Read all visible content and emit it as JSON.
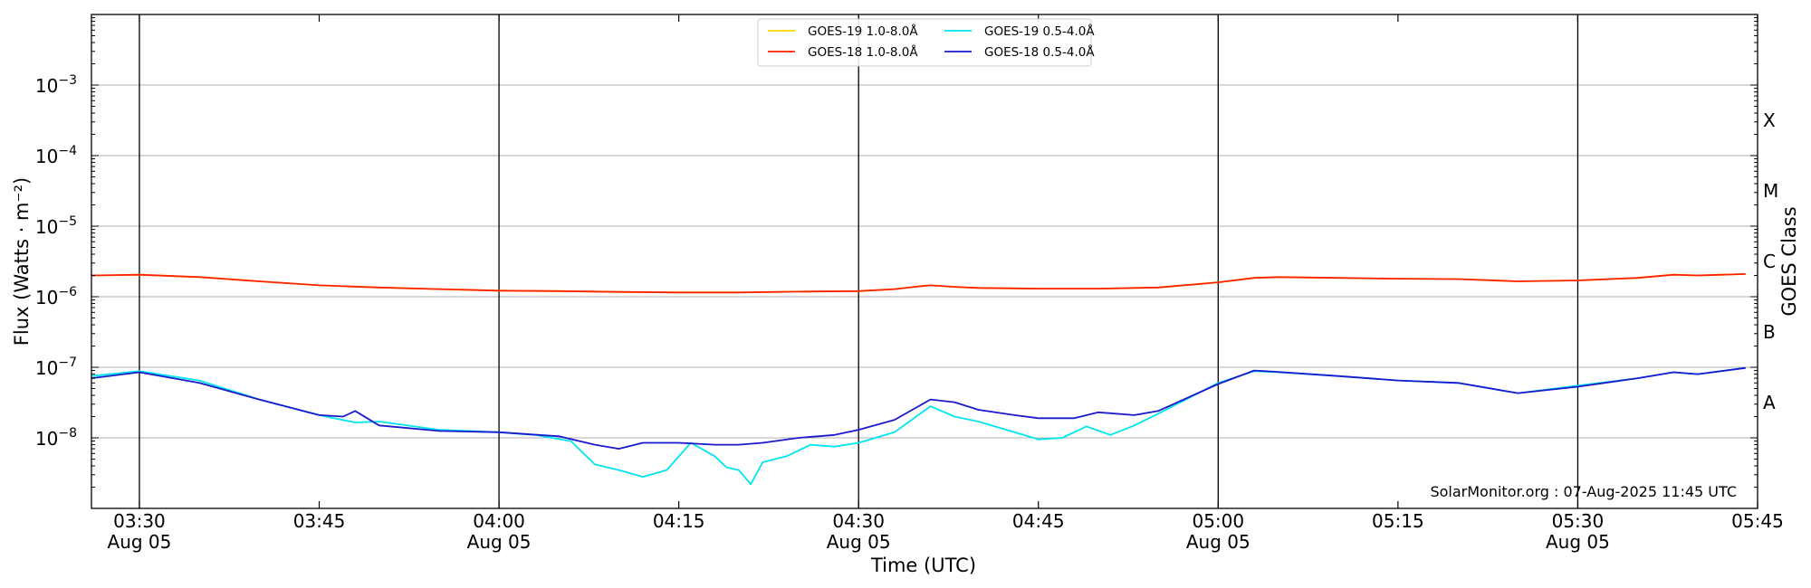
{
  "chart_data": {
    "type": "line",
    "xlabel": "Time (UTC)",
    "ylabel": "Flux (Watts · m⁻²)",
    "y2label": "GOES Class",
    "credit": "SolarMonitor.org : 07-Aug-2025 11:45 UTC",
    "y_scale": "log",
    "ylim": [
      1e-09,
      0.01
    ],
    "xlim": [
      "03:26",
      "05:45"
    ],
    "grid": "horizontal at decades; vertical lines at 03:30, 04:00, 04:30, 05:00, 05:30",
    "x_ticks": [
      {
        "time": "03:30",
        "label": "03:30",
        "sub": "Aug 05"
      },
      {
        "time": "03:45",
        "label": "03:45",
        "sub": ""
      },
      {
        "time": "04:00",
        "label": "04:00",
        "sub": "Aug 05"
      },
      {
        "time": "04:15",
        "label": "04:15",
        "sub": ""
      },
      {
        "time": "04:30",
        "label": "04:30",
        "sub": "Aug 05"
      },
      {
        "time": "04:45",
        "label": "04:45",
        "sub": ""
      },
      {
        "time": "05:00",
        "label": "05:00",
        "sub": "Aug 05"
      },
      {
        "time": "05:15",
        "label": "05:15",
        "sub": ""
      },
      {
        "time": "05:30",
        "label": "05:30",
        "sub": "Aug 05"
      },
      {
        "time": "05:45",
        "label": "05:45",
        "sub": ""
      }
    ],
    "y_ticks": [
      {
        "exp": -8,
        "label": "10",
        "sup": "−8"
      },
      {
        "exp": -7,
        "label": "10",
        "sup": "−7"
      },
      {
        "exp": -6,
        "label": "10",
        "sup": "−6"
      },
      {
        "exp": -5,
        "label": "10",
        "sup": "−5"
      },
      {
        "exp": -4,
        "label": "10",
        "sup": "−4"
      },
      {
        "exp": -3,
        "label": "10",
        "sup": "−3"
      }
    ],
    "goes_classes": [
      {
        "label": "A",
        "exp": -7.5
      },
      {
        "label": "B",
        "exp": -6.5
      },
      {
        "label": "C",
        "exp": -5.5
      },
      {
        "label": "M",
        "exp": -4.5
      },
      {
        "label": "X",
        "exp": -3.5
      }
    ],
    "legend_position": "top-center",
    "series": [
      {
        "name": "GOES-19 1.0-8.0Å",
        "color": "#ffd700",
        "x": [
          "03:26",
          "03:30",
          "03:35",
          "03:40",
          "03:45",
          "03:50",
          "03:55",
          "04:00",
          "04:05",
          "04:10",
          "04:15",
          "04:20",
          "04:25",
          "04:30",
          "04:33",
          "04:35",
          "04:36",
          "04:38",
          "04:40",
          "04:45",
          "04:50",
          "04:55",
          "05:00",
          "05:03",
          "05:05",
          "05:10",
          "05:15",
          "05:20",
          "05:25",
          "05:30",
          "05:35",
          "05:38",
          "05:40",
          "05:44"
        ],
        "y": [
          2e-06,
          2.05e-06,
          1.9e-06,
          1.65e-06,
          1.45e-06,
          1.35e-06,
          1.28e-06,
          1.22e-06,
          1.2e-06,
          1.17e-06,
          1.15e-06,
          1.15e-06,
          1.18e-06,
          1.2e-06,
          1.28e-06,
          1.4e-06,
          1.45e-06,
          1.38e-06,
          1.33e-06,
          1.3e-06,
          1.3e-06,
          1.35e-06,
          1.6e-06,
          1.85e-06,
          1.9e-06,
          1.85e-06,
          1.8e-06,
          1.78e-06,
          1.65e-06,
          1.7e-06,
          1.85e-06,
          2.05e-06,
          2e-06,
          2.1e-06
        ]
      },
      {
        "name": "GOES-18 1.0-8.0Å",
        "color": "#ff2200",
        "x": [
          "03:26",
          "03:30",
          "03:35",
          "03:40",
          "03:45",
          "03:50",
          "03:55",
          "04:00",
          "04:05",
          "04:10",
          "04:15",
          "04:20",
          "04:25",
          "04:30",
          "04:33",
          "04:35",
          "04:36",
          "04:38",
          "04:40",
          "04:45",
          "04:50",
          "04:55",
          "05:00",
          "05:03",
          "05:05",
          "05:10",
          "05:15",
          "05:20",
          "05:25",
          "05:30",
          "05:35",
          "05:38",
          "05:40",
          "05:44"
        ],
        "y": [
          2e-06,
          2.05e-06,
          1.9e-06,
          1.65e-06,
          1.45e-06,
          1.35e-06,
          1.28e-06,
          1.22e-06,
          1.2e-06,
          1.17e-06,
          1.15e-06,
          1.15e-06,
          1.18e-06,
          1.2e-06,
          1.28e-06,
          1.4e-06,
          1.45e-06,
          1.38e-06,
          1.33e-06,
          1.3e-06,
          1.3e-06,
          1.35e-06,
          1.6e-06,
          1.85e-06,
          1.9e-06,
          1.85e-06,
          1.8e-06,
          1.78e-06,
          1.65e-06,
          1.7e-06,
          1.85e-06,
          2.05e-06,
          2e-06,
          2.1e-06
        ]
      },
      {
        "name": "GOES-19 0.5-4.0Å",
        "color": "#00e5ee",
        "x": [
          "03:26",
          "03:30",
          "03:35",
          "03:40",
          "03:45",
          "03:48",
          "03:50",
          "03:55",
          "04:00",
          "04:03",
          "04:06",
          "04:08",
          "04:10",
          "04:12",
          "04:14",
          "04:16",
          "04:18",
          "04:19",
          "04:20",
          "04:21",
          "04:22",
          "04:24",
          "04:26",
          "04:28",
          "04:30",
          "04:33",
          "04:36",
          "04:38",
          "04:40",
          "04:43",
          "04:45",
          "04:47",
          "04:49",
          "04:51",
          "04:53",
          "04:55",
          "05:00",
          "05:03",
          "05:05",
          "05:10",
          "05:15",
          "05:20",
          "05:25",
          "05:30",
          "05:35",
          "05:38",
          "05:40",
          "05:44"
        ],
        "y": [
          7.5e-08,
          8.8e-08,
          6.5e-08,
          3.5e-08,
          2.1e-08,
          1.65e-08,
          1.7e-08,
          1.3e-08,
          1.2e-08,
          1.1e-08,
          9e-09,
          4.2e-09,
          3.5e-09,
          2.8e-09,
          3.5e-09,
          8.5e-09,
          5.5e-09,
          3.8e-09,
          3.5e-09,
          2.2e-09,
          4.5e-09,
          5.5e-09,
          8e-09,
          7.5e-09,
          8.5e-09,
          1.2e-08,
          2.8e-08,
          2e-08,
          1.7e-08,
          1.2e-08,
          9.5e-09,
          1e-08,
          1.45e-08,
          1.1e-08,
          1.5e-08,
          2.2e-08,
          6e-08,
          8.8e-08,
          8.5e-08,
          7.5e-08,
          6.5e-08,
          6e-08,
          4.3e-08,
          5.5e-08,
          7e-08,
          8.5e-08,
          8e-08,
          9.8e-08
        ]
      },
      {
        "name": "GOES-18 0.5-4.0Å",
        "color": "#1a1acd",
        "x": [
          "03:26",
          "03:30",
          "03:35",
          "03:40",
          "03:45",
          "03:47",
          "03:48",
          "03:50",
          "03:55",
          "04:00",
          "04:05",
          "04:08",
          "04:10",
          "04:12",
          "04:15",
          "04:18",
          "04:20",
          "04:22",
          "04:25",
          "04:28",
          "04:30",
          "04:33",
          "04:36",
          "04:38",
          "04:40",
          "04:43",
          "04:45",
          "04:48",
          "04:50",
          "04:53",
          "04:55",
          "05:00",
          "05:03",
          "05:05",
          "05:10",
          "05:15",
          "05:20",
          "05:25",
          "05:30",
          "05:35",
          "05:38",
          "05:40",
          "05:44"
        ],
        "y": [
          7e-08,
          8.5e-08,
          6e-08,
          3.5e-08,
          2.1e-08,
          2e-08,
          2.4e-08,
          1.5e-08,
          1.25e-08,
          1.2e-08,
          1.05e-08,
          8e-09,
          7e-09,
          8.5e-09,
          8.5e-09,
          8e-09,
          8e-09,
          8.5e-09,
          1e-08,
          1.1e-08,
          1.3e-08,
          1.8e-08,
          3.5e-08,
          3.2e-08,
          2.5e-08,
          2.1e-08,
          1.9e-08,
          1.9e-08,
          2.3e-08,
          2.1e-08,
          2.4e-08,
          5.8e-08,
          9e-08,
          8.6e-08,
          7.5e-08,
          6.5e-08,
          6e-08,
          4.3e-08,
          5.3e-08,
          7e-08,
          8.5e-08,
          8e-08,
          9.8e-08
        ]
      }
    ]
  }
}
